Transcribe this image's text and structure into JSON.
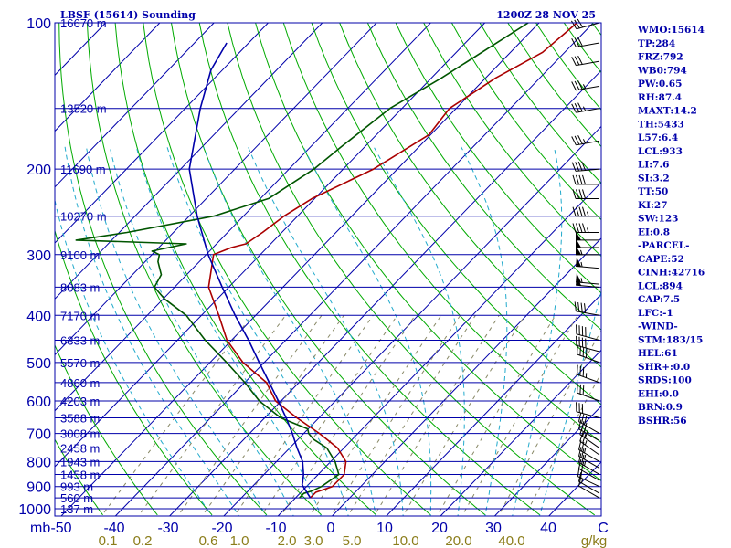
{
  "station": "LBSF (15614) Sounding",
  "valid_time": "1200Z 28 NOV 25",
  "indices": [
    "WMO:15614",
    "TP:284",
    "FRZ:792",
    "WB0:794",
    "PW:0.65",
    "RH:87.4",
    "MAXT:14.2",
    "TH:5433",
    "L57:6.4",
    "LCL:933",
    "LI:7.6",
    "SI:3.2",
    "TT:50",
    "KI:27",
    "SW:123",
    "EI:0.8",
    "-PARCEL-",
    "CAPE:52",
    "CINH:42716",
    "LCL:894",
    "CAP:7.5",
    "LFC:-1",
    "-WIND-",
    "STM:183/15",
    "HEL:61",
    "SHR+:0.0",
    "SRDS:100",
    "EHI:0.0",
    "BRN:0.9",
    "BSHR:56"
  ],
  "colors": {
    "isobar": "#0000aa",
    "isotherm": "#0000aa",
    "dry_adiabat": "#00aa00",
    "moist_adiabat": "#22aacc",
    "mixing_ratio": "#888866",
    "temperature": "#aa0000",
    "dewpoint": "#005500",
    "parcel": "#0000aa",
    "wind_barb": "#000000",
    "label": "#0000aa",
    "mixing_label": "#8b7d1a"
  },
  "chart_data": {
    "type": "skew-t",
    "title": "LBSF (15614) Sounding",
    "x_unit": "mb",
    "mixing_unit": "g/kg",
    "pressure_levels": [
      100,
      200,
      300,
      400,
      500,
      600,
      700,
      800,
      900,
      1000
    ],
    "pressure_labels": [
      "100",
      "200",
      "300",
      "400",
      "500",
      "600",
      "700",
      "800",
      "900",
      "1000"
    ],
    "temperature_ticks": [
      "-50",
      "-40",
      "-30",
      "-20",
      "-10",
      "0",
      "10",
      "20",
      "30",
      "40",
      "C"
    ],
    "temperature_values": [
      -50,
      -40,
      -30,
      -20,
      -10,
      0,
      10,
      20,
      30,
      40
    ],
    "mixing_ratio_labels": [
      "0.1",
      "0.2",
      "0.6",
      "1.0",
      "2.0",
      "3.0",
      "5.0",
      "10.0",
      "20.0",
      "40.0"
    ],
    "mixing_ratio_values": [
      0.1,
      0.2,
      0.6,
      1.0,
      2.0,
      3.0,
      5.0,
      10.0,
      20.0,
      40.0
    ],
    "height_labels": [
      {
        "p": 100,
        "label": "16670 m"
      },
      {
        "p": 150,
        "label": "13520 m"
      },
      {
        "p": 200,
        "label": "11690 m"
      },
      {
        "p": 250,
        "label": "10270 m"
      },
      {
        "p": 300,
        "label": "9100 m"
      },
      {
        "p": 350,
        "label": "8083 m"
      },
      {
        "p": 400,
        "label": "7170 m"
      },
      {
        "p": 450,
        "label": "6333 m"
      },
      {
        "p": 500,
        "label": "5570 m"
      },
      {
        "p": 550,
        "label": "4860 m"
      },
      {
        "p": 600,
        "label": "4203 m"
      },
      {
        "p": 650,
        "label": "3588 m"
      },
      {
        "p": 700,
        "label": "3008 m"
      },
      {
        "p": 750,
        "label": "2458 m"
      },
      {
        "p": 800,
        "label": "1943 m"
      },
      {
        "p": 850,
        "label": "1458 m"
      },
      {
        "p": 900,
        "label": "993 m"
      },
      {
        "p": 950,
        "label": "560 m"
      },
      {
        "p": 1000,
        "label": "137 m"
      }
    ],
    "series": [
      {
        "kind": "temperature",
        "points": [
          [
            950,
            -6.0
          ],
          [
            925,
            -6.0
          ],
          [
            900,
            -4.0
          ],
          [
            850,
            -4.0
          ],
          [
            800,
            -6.0
          ],
          [
            750,
            -10.0
          ],
          [
            700,
            -16.0
          ],
          [
            650,
            -23.0
          ],
          [
            600,
            -30.0
          ],
          [
            550,
            -35.0
          ],
          [
            500,
            -43.0
          ],
          [
            450,
            -50.0
          ],
          [
            400,
            -56.0
          ],
          [
            350,
            -63.0
          ],
          [
            300,
            -68.0
          ],
          [
            290,
            -66.0
          ],
          [
            285,
            -64.0
          ],
          [
            270,
            -63.0
          ],
          [
            250,
            -62.0
          ],
          [
            230,
            -60.0
          ],
          [
            200,
            -54.0
          ],
          [
            170,
            -50.0
          ],
          [
            150,
            -51.0
          ],
          [
            130,
            -48.0
          ],
          [
            115,
            -44.0
          ],
          [
            100,
            -43.0
          ]
        ]
      },
      {
        "kind": "dewpoint",
        "points": [
          [
            950,
            -8.0
          ],
          [
            930,
            -8.0
          ],
          [
            920,
            -7.0
          ],
          [
            900,
            -6.0
          ],
          [
            850,
            -5.0
          ],
          [
            800,
            -8.0
          ],
          [
            750,
            -12.0
          ],
          [
            720,
            -16.0
          ],
          [
            700,
            -18.0
          ],
          [
            685,
            -19.0
          ],
          [
            650,
            -26.0
          ],
          [
            600,
            -33.0
          ],
          [
            550,
            -39.0
          ],
          [
            500,
            -46.0
          ],
          [
            450,
            -54.0
          ],
          [
            400,
            -62.0
          ],
          [
            370,
            -69.0
          ],
          [
            350,
            -73.0
          ],
          [
            330,
            -74.0
          ],
          [
            310,
            -77.0
          ],
          [
            300,
            -78.0
          ],
          [
            295,
            -80.0
          ],
          [
            285,
            -75.0
          ],
          [
            280,
            -96.0
          ],
          [
            270,
            -88.0
          ],
          [
            250,
            -75.0
          ],
          [
            230,
            -68.0
          ],
          [
            200,
            -65.0
          ],
          [
            180,
            -64.0
          ],
          [
            150,
            -62.0
          ],
          [
            130,
            -58.0
          ],
          [
            100,
            -52.0
          ]
        ]
      },
      {
        "kind": "parcel",
        "points": [
          [
            950,
            -6.0
          ],
          [
            920,
            -8.0
          ],
          [
            894,
            -9.8
          ],
          [
            850,
            -11.5
          ],
          [
            800,
            -14.0
          ],
          [
            750,
            -17.5
          ],
          [
            700,
            -21.0
          ],
          [
            650,
            -25.0
          ],
          [
            600,
            -29.5
          ],
          [
            550,
            -34.5
          ],
          [
            500,
            -40.0
          ],
          [
            450,
            -46.0
          ],
          [
            400,
            -53.0
          ],
          [
            350,
            -60.5
          ],
          [
            300,
            -69.0
          ],
          [
            250,
            -78.0
          ],
          [
            200,
            -88.0
          ],
          [
            150,
            -97.0
          ],
          [
            125,
            -102.0
          ],
          [
            110,
            -104.0
          ]
        ]
      }
    ],
    "wind_barbs": [
      {
        "p": 950,
        "dir": 300,
        "spd": 10
      },
      {
        "p": 930,
        "dir": 300,
        "spd": 15
      },
      {
        "p": 900,
        "dir": 295,
        "spd": 20
      },
      {
        "p": 875,
        "dir": 300,
        "spd": 20
      },
      {
        "p": 850,
        "dir": 300,
        "spd": 25
      },
      {
        "p": 825,
        "dir": 300,
        "spd": 25
      },
      {
        "p": 800,
        "dir": 300,
        "spd": 25
      },
      {
        "p": 775,
        "dir": 305,
        "spd": 25
      },
      {
        "p": 750,
        "dir": 305,
        "spd": 30
      },
      {
        "p": 725,
        "dir": 300,
        "spd": 30
      },
      {
        "p": 700,
        "dir": 300,
        "spd": 30
      },
      {
        "p": 650,
        "dir": 285,
        "spd": 30
      },
      {
        "p": 600,
        "dir": 290,
        "spd": 30
      },
      {
        "p": 550,
        "dir": 290,
        "spd": 35
      },
      {
        "p": 500,
        "dir": 290,
        "spd": 40
      },
      {
        "p": 475,
        "dir": 285,
        "spd": 40
      },
      {
        "p": 450,
        "dir": 285,
        "spd": 40
      },
      {
        "p": 400,
        "dir": 280,
        "spd": 40
      },
      {
        "p": 350,
        "dir": 275,
        "spd": 50
      },
      {
        "p": 345,
        "dir": 275,
        "spd": 55
      },
      {
        "p": 320,
        "dir": 275,
        "spd": 55
      },
      {
        "p": 300,
        "dir": 270,
        "spd": 55
      },
      {
        "p": 290,
        "dir": 270,
        "spd": 50
      },
      {
        "p": 280,
        "dir": 270,
        "spd": 50
      },
      {
        "p": 270,
        "dir": 270,
        "spd": 45
      },
      {
        "p": 250,
        "dir": 270,
        "spd": 45
      },
      {
        "p": 230,
        "dir": 270,
        "spd": 40
      },
      {
        "p": 215,
        "dir": 270,
        "spd": 40
      },
      {
        "p": 200,
        "dir": 265,
        "spd": 40
      },
      {
        "p": 175,
        "dir": 260,
        "spd": 35
      },
      {
        "p": 150,
        "dir": 260,
        "spd": 35
      },
      {
        "p": 135,
        "dir": 260,
        "spd": 35
      },
      {
        "p": 120,
        "dir": 260,
        "spd": 30
      },
      {
        "p": 110,
        "dir": 260,
        "spd": 30
      },
      {
        "p": 100,
        "dir": 255,
        "spd": 30
      }
    ]
  }
}
